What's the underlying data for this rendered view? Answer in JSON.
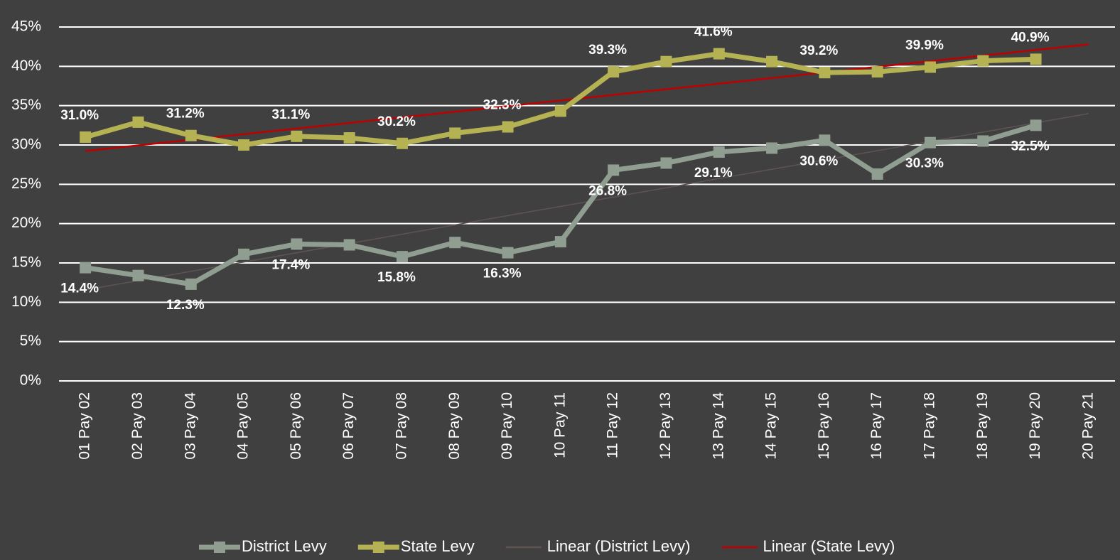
{
  "chart_data": {
    "type": "line",
    "categories": [
      "01 Pay 02",
      "02 Pay 03",
      "03 Pay 04",
      "04 Pay 05",
      "05 Pay 06",
      "06 Pay 07",
      "07 Pay 08",
      "08 Pay 09",
      "09 Pay 10",
      "10 Pay 11",
      "11 Pay 12",
      "12 Pay 13",
      "13 Pay 14",
      "14 Pay 15",
      "15 Pay 16",
      "16 Pay 17",
      "17 Pay 18",
      "18 Pay 19",
      "19 Pay 20",
      "20 Pay 21"
    ],
    "series": [
      {
        "name": "District Levy",
        "color": "#8f9e91",
        "values": [
          14.4,
          13.4,
          12.3,
          16.1,
          17.4,
          17.3,
          15.8,
          17.6,
          16.3,
          17.7,
          26.8,
          27.7,
          29.1,
          29.6,
          30.6,
          26.3,
          30.3,
          30.5,
          32.5,
          null
        ],
        "value_labels": [
          "14.4%",
          null,
          "12.3%",
          null,
          "17.4%",
          null,
          "15.8%",
          null,
          "16.3%",
          null,
          "26.8%",
          null,
          "29.1%",
          null,
          "30.6%",
          null,
          "30.3%",
          null,
          "32.5%",
          null
        ],
        "label_position": "below",
        "trendline": {
          "name": "Linear (District Levy)",
          "color": "#5e5452"
        }
      },
      {
        "name": "State Levy",
        "color": "#b5b254",
        "values": [
          31.0,
          32.9,
          31.2,
          30.0,
          31.1,
          30.9,
          30.2,
          31.5,
          32.3,
          34.3,
          39.3,
          40.6,
          41.6,
          40.6,
          39.2,
          39.3,
          39.9,
          40.7,
          40.9,
          null
        ],
        "value_labels": [
          "31.0%",
          null,
          "31.2%",
          null,
          "31.1%",
          null,
          "30.2%",
          null,
          "32.3%",
          null,
          "39.3%",
          null,
          "41.6%",
          null,
          "39.2%",
          null,
          "39.9%",
          null,
          "40.9%",
          null
        ],
        "label_position": "above",
        "trendline": {
          "name": "Linear (State Levy)",
          "color": "#c00000"
        }
      }
    ],
    "ylim": [
      0,
      45
    ],
    "yticks": [
      {
        "value": 0,
        "label": "0%"
      },
      {
        "value": 5,
        "label": "5%"
      },
      {
        "value": 10,
        "label": "10%"
      },
      {
        "value": 15,
        "label": "15%"
      },
      {
        "value": 20,
        "label": "20%"
      },
      {
        "value": 25,
        "label": "25%"
      },
      {
        "value": 30,
        "label": "30%"
      },
      {
        "value": 35,
        "label": "35%"
      },
      {
        "value": 40,
        "label": "40%"
      },
      {
        "value": 45,
        "label": "45%"
      }
    ],
    "grid": true,
    "legend": "bottom"
  }
}
